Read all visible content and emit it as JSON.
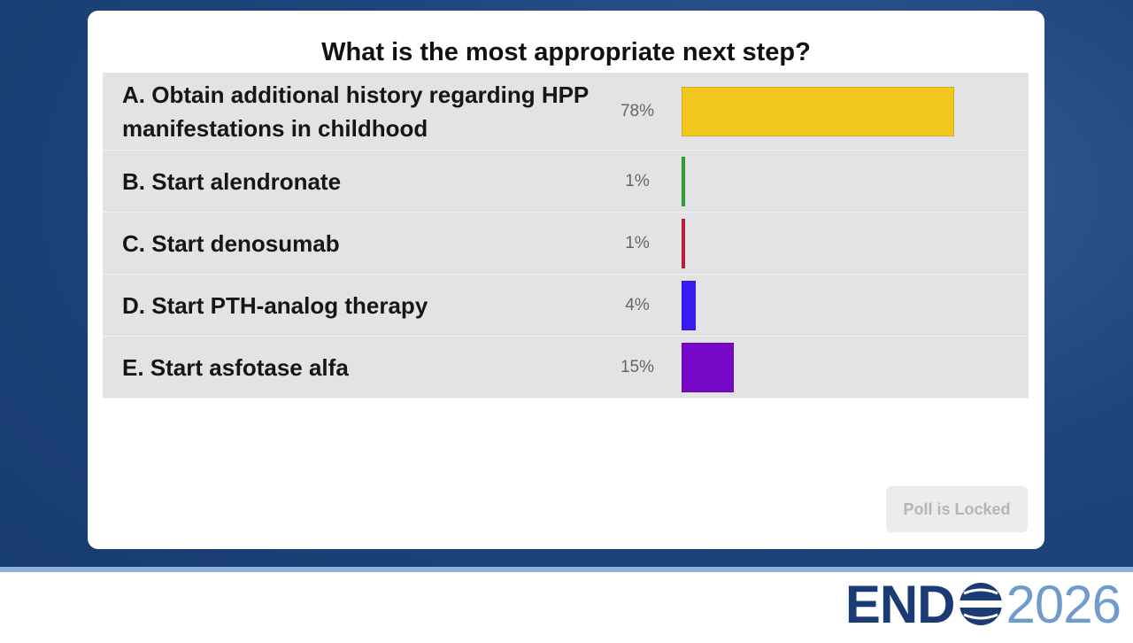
{
  "poll": {
    "question": "What is the most appropriate next step?",
    "options": [
      {
        "label": "A. Obtain additional history regarding HPP manifestations in childhood",
        "value": 78,
        "value_label": "78%",
        "color": "#f2c71e"
      },
      {
        "label": "B. Start alendronate",
        "value": 1,
        "value_label": "1%",
        "color": "#2fa53a"
      },
      {
        "label": "C. Start denosumab",
        "value": 1,
        "value_label": "1%",
        "color": "#c41f3b"
      },
      {
        "label": "D. Start PTH-analog therapy",
        "value": 4,
        "value_label": "4%",
        "color": "#3a1cf2"
      },
      {
        "label": "E. Start asfotase alfa",
        "value": 15,
        "value_label": "15%",
        "color": "#7708c8"
      }
    ],
    "button": "Poll is Locked"
  },
  "logo": {
    "left": "END",
    "right": "2026"
  }
}
